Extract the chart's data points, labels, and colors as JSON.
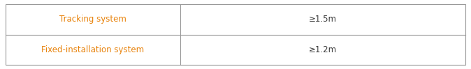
{
  "rows": [
    [
      "Fixed-installation system",
      "≥1.2m"
    ],
    [
      "Tracking system",
      "≥1.5m"
    ]
  ],
  "left_col_color": "#e8820a",
  "right_col_color": "#3a3a3a",
  "border_color": "#999999",
  "bg_color": "#ffffff",
  "font_size": 8.5,
  "col_split": 0.38,
  "fig_width": 6.74,
  "fig_height": 0.99
}
